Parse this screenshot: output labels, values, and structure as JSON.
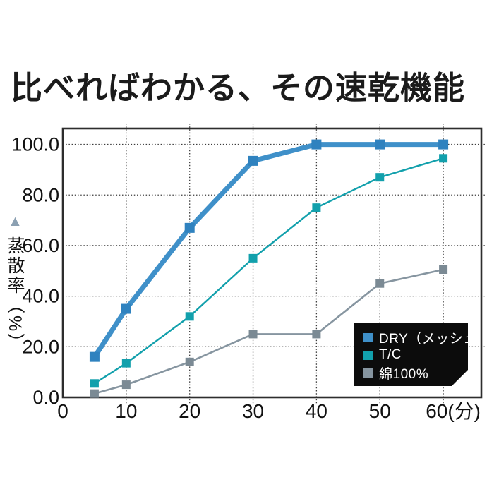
{
  "header": {
    "title": "比べればわかる、その速乾機能"
  },
  "chart_data": {
    "type": "line",
    "title": "比べればわかる、その速乾機能",
    "xlabel": "（分）",
    "ylabel": "蒸散率（%）",
    "ylabel_marker": "▲",
    "ylabel_marker_color": "#8ba0b2",
    "x": [
      5,
      10,
      20,
      30,
      40,
      50,
      60
    ],
    "series": [
      {
        "name": "DRY（メッシュ）",
        "values": [
          16,
          35,
          67,
          93.5,
          100,
          100,
          100
        ],
        "color": "#3f90c9",
        "marker_color": "#2f82bf",
        "line_width": 7,
        "marker_size": 14
      },
      {
        "name": "T/C",
        "values": [
          5.5,
          13.5,
          32,
          55,
          75,
          87,
          94.5
        ],
        "color": "#12a0ac",
        "marker_color": "#12a0ac",
        "line_width": 2.4,
        "marker_size": 12
      },
      {
        "name": "綿100%",
        "values": [
          1.5,
          5,
          14,
          25,
          25,
          45,
          50.5
        ],
        "color": "#8695a0",
        "marker_color": "#7b8a94",
        "line_width": 2.6,
        "marker_size": 12
      }
    ],
    "xticks": [
      0,
      10,
      20,
      30,
      40,
      50,
      60
    ],
    "xtick_labels": [
      "0",
      "10",
      "20",
      "30",
      "40",
      "50",
      "60(分)"
    ],
    "yticks": [
      0,
      20,
      40,
      60,
      80,
      100
    ],
    "ytick_labels": [
      "0.0",
      "20.0",
      "40.0",
      "60.0",
      "80.0",
      "100.0"
    ],
    "xlim": [
      0,
      66
    ],
    "ylim": [
      0,
      106.3
    ],
    "grid": true,
    "legend_position": "inside-bottom-right",
    "legend_bg": "#0c0c0c"
  }
}
